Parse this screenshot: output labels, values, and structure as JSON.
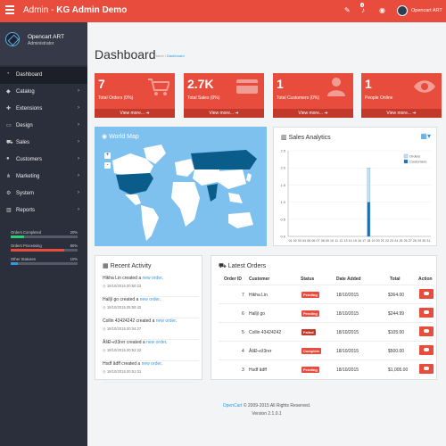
{
  "header": {
    "brand_prefix": "Admin - ",
    "brand_title": "KG Admin Demo",
    "notification_count": "4",
    "user": "Opencart ART"
  },
  "sidebar": {
    "profile_name": "Opencart ART",
    "profile_role": "Administrator",
    "items": [
      {
        "label": "Dashboard",
        "icon": "dashboard-icon",
        "glyph": "◔",
        "has_children": false,
        "active": true
      },
      {
        "label": "Catalog",
        "icon": "tag-icon",
        "glyph": "◆",
        "has_children": true
      },
      {
        "label": "Extensions",
        "icon": "puzzle-icon",
        "glyph": "✚",
        "has_children": true
      },
      {
        "label": "Design",
        "icon": "monitor-icon",
        "glyph": "▭",
        "has_children": true
      },
      {
        "label": "Sales",
        "icon": "cart-icon",
        "glyph": "⛟",
        "has_children": true
      },
      {
        "label": "Customers",
        "icon": "user-icon",
        "glyph": "●",
        "has_children": true
      },
      {
        "label": "Marketing",
        "icon": "share-icon",
        "glyph": "⋔",
        "has_children": true
      },
      {
        "label": "System",
        "icon": "gear-icon",
        "glyph": "⚙",
        "has_children": true
      },
      {
        "label": "Reports",
        "icon": "bar-chart-icon",
        "glyph": "▥",
        "has_children": true
      }
    ],
    "stats": [
      {
        "label": "Orders Completed",
        "percent": "20%",
        "value": 0.2,
        "color": "#2ecc71"
      },
      {
        "label": "Orders Processing",
        "percent": "80%",
        "value": 0.8,
        "color": "#e74c3c"
      },
      {
        "label": "Other Statuses",
        "percent": "10%",
        "value": 0.1,
        "color": "#3498db"
      }
    ]
  },
  "page": {
    "title": "Dashboard",
    "breadcrumb_home": "Home",
    "breadcrumb_current": "Dashboard"
  },
  "tiles": [
    {
      "value": "7",
      "label": "Total Orders (0%)",
      "more": "View more...",
      "icon": "cart-icon"
    },
    {
      "value": "2.7K",
      "label": "Total Sales (0%)",
      "more": "View more...",
      "icon": "credit-card-icon"
    },
    {
      "value": "1",
      "label": "Total Customers (0%)",
      "more": "View more...",
      "icon": "user-icon"
    },
    {
      "value": "1",
      "label": "People Online",
      "more": "View more...",
      "icon": "eye-icon"
    }
  ],
  "world_map": {
    "title": "World Map",
    "zoom_in": "+",
    "zoom_out": "-"
  },
  "sales_analytics": {
    "title": "Sales Analytics"
  },
  "chart_data": {
    "type": "bar",
    "title": "Sales Analytics",
    "categories": [
      "01",
      "02",
      "03",
      "04",
      "05",
      "06",
      "07",
      "08",
      "09",
      "10",
      "11",
      "12",
      "13",
      "14",
      "15",
      "16",
      "17",
      "18",
      "19",
      "20",
      "21",
      "22",
      "23",
      "24",
      "25",
      "26",
      "27",
      "28",
      "29",
      "30",
      "31"
    ],
    "series": [
      {
        "name": "Orders",
        "values": [
          0,
          0,
          0,
          0,
          0,
          0,
          0,
          0,
          0,
          0,
          0,
          0,
          0,
          0,
          0,
          0,
          0,
          2,
          0,
          0,
          0,
          0,
          0,
          0,
          0,
          0,
          0,
          0,
          0,
          0,
          0
        ],
        "color": "#c5dff3"
      },
      {
        "name": "Customers",
        "values": [
          0,
          0,
          0,
          0,
          0,
          0,
          0,
          0,
          0,
          0,
          0,
          0,
          0,
          0,
          0,
          0,
          0,
          1,
          0,
          0,
          0,
          0,
          0,
          0,
          0,
          0,
          0,
          0,
          0,
          0,
          0
        ],
        "color": "#1f6fb5"
      }
    ],
    "yticks": [
      "2.5",
      "2.0",
      "1.5",
      "1.0",
      "0.5",
      "0.0"
    ],
    "ylim": [
      0,
      2.5
    ],
    "grid": true,
    "legend": "top-right"
  },
  "recent_activity": {
    "title": "Recent Activity",
    "items": [
      {
        "name": "Hikha Lin",
        "text": " created a ",
        "link": "new order",
        "end": ".",
        "date": "18/10/2016 00:50:23"
      },
      {
        "name": "Halljí go",
        "text": " created a ",
        "link": "new order",
        "end": ".",
        "date": "18/10/2015 05:55:42"
      },
      {
        "name": "Collin 43424242",
        "text": " created a ",
        "link": "new order",
        "end": ".",
        "date": "18/10/2015 00:04:27"
      },
      {
        "name": "ÅšÐ¬rž3rer",
        "text": " created a ",
        "link": "new order",
        "end": ".",
        "date": "18/10/2015 00:52:22"
      },
      {
        "name": "Hsdf âdff",
        "text": " created a ",
        "link": "new order",
        "end": ".",
        "date": "18/10/2015 00:51:01"
      }
    ]
  },
  "latest_orders": {
    "title": "Latest Orders",
    "columns": [
      "Order ID",
      "Customer",
      "Status",
      "Date Added",
      "Total",
      "Action"
    ],
    "rows": [
      {
        "id": "7",
        "customer": "Hikha Lin",
        "status": "Pending",
        "status_color": "#e74c3c",
        "date": "18/10/2015",
        "total": "$364.00"
      },
      {
        "id": "6",
        "customer": "Halljí go",
        "status": "Pending",
        "status_color": "#e74c3c",
        "date": "18/10/2015",
        "total": "$244.99"
      },
      {
        "id": "5",
        "customer": "Collin 43424242",
        "status": "Failed",
        "status_color": "#c0392b",
        "date": "18/10/2015",
        "total": "$105.00"
      },
      {
        "id": "4",
        "customer": "ÅšÐ¬rž3rer",
        "status": "Complete",
        "status_color": "#e74c3c",
        "date": "18/10/2015",
        "total": "$500.00"
      },
      {
        "id": "3",
        "customer": "Hsdf âdff",
        "status": "Pending",
        "status_color": "#e74c3c",
        "date": "18/10/2015",
        "total": "$1,005.00"
      }
    ]
  },
  "footer": {
    "link": "OpenCart",
    "copyright": " © 2009-2015 All Rights Reserved.",
    "version": "Version 2.1.0.1"
  },
  "colors": {
    "accent": "#e74c3c",
    "sidebar": "#2b2e3b",
    "map_water": "#7ec0ee",
    "map_land": "#ffffff",
    "map_highlight": "#0a5c8a"
  }
}
